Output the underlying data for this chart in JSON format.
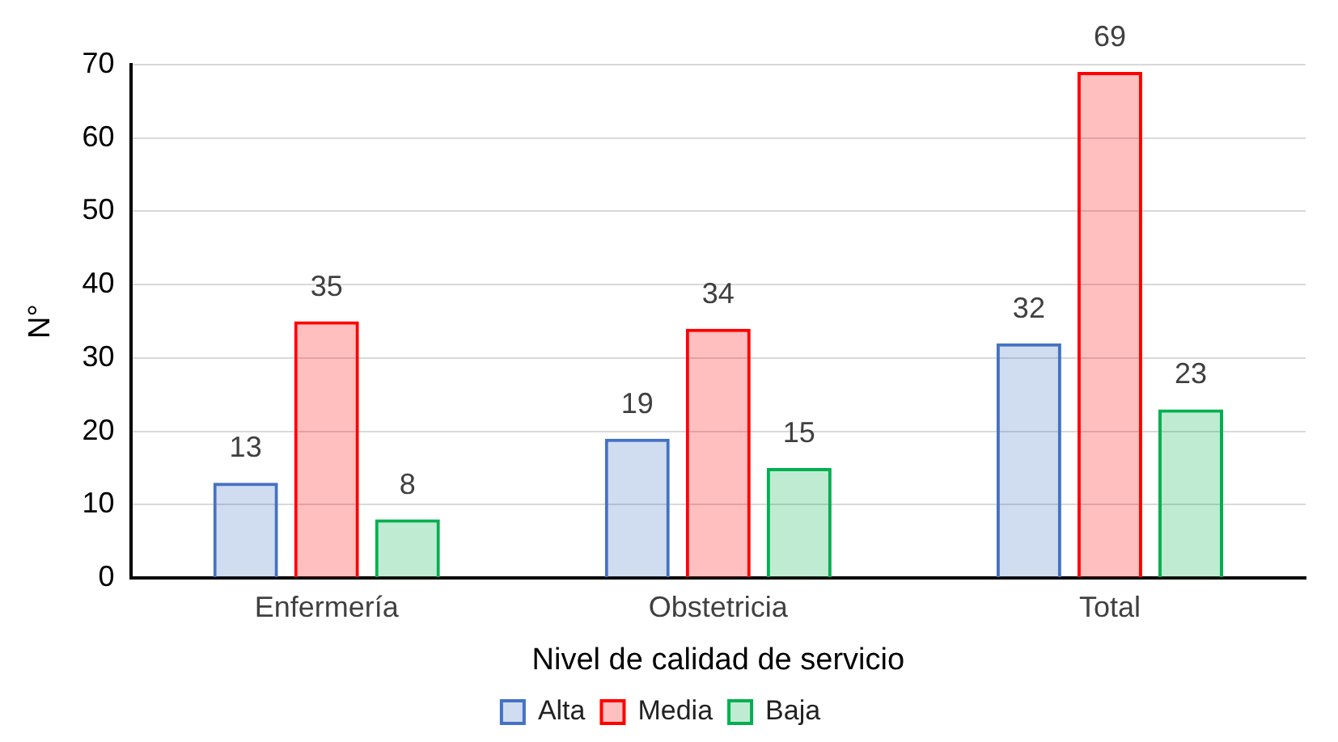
{
  "chart_data": {
    "type": "bar",
    "xlabel": "Nivel de calidad de servicio",
    "ylabel": "N°",
    "categories": [
      "Enfermería",
      "Obstetricia",
      "Total"
    ],
    "series": [
      {
        "name": "Alta",
        "color": "#4472c4",
        "values": [
          13,
          19,
          32
        ]
      },
      {
        "name": "Media",
        "color": "#ff0000",
        "values": [
          35,
          34,
          69
        ]
      },
      {
        "name": "Baja",
        "color": "#00b050",
        "values": [
          8,
          15,
          23
        ]
      }
    ],
    "ylim": [
      0,
      70
    ],
    "yticks": [
      0,
      10,
      20,
      30,
      40,
      50,
      60,
      70
    ],
    "grid": "y",
    "legend": "bottom",
    "data_labels": true
  }
}
